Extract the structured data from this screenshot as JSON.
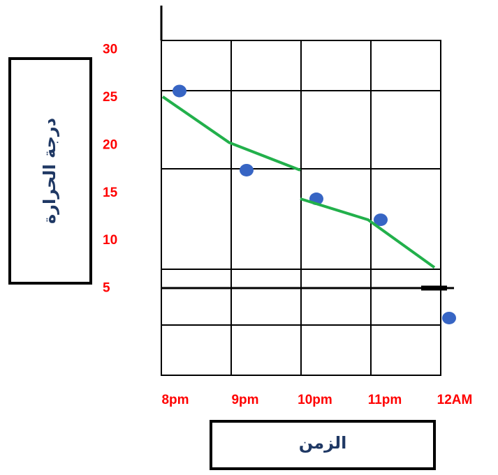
{
  "chart_data": {
    "type": "scatter",
    "y_label": "درجة الحرارة",
    "x_label": "الزمن",
    "xlim": [
      0,
      4
    ],
    "xticks": [
      {
        "value": 0,
        "label": "8pm"
      },
      {
        "value": 1,
        "label": "9pm"
      },
      {
        "value": 2,
        "label": "10pm"
      },
      {
        "value": 3,
        "label": "11pm"
      },
      {
        "value": 4,
        "label": "12AM"
      }
    ],
    "ylim": [
      -4.1,
      31
    ],
    "yticks": [
      5,
      10,
      15,
      20,
      25,
      30
    ],
    "grid": true,
    "series": [
      {
        "color": "#3765c4",
        "x": [
          0.26,
          1.22,
          2.22,
          3.14,
          4.12
        ],
        "values": [
          25.7,
          17.4,
          14.4,
          12.2,
          1.9
        ]
      },
      {
        "color": "#22b04b",
        "x": [
          0.02,
          0.97,
          1.99,
          null,
          1.99,
          2.96,
          3.91
        ],
        "values": [
          25.1,
          20.3,
          17.4,
          null,
          14.4,
          12.2,
          7.2
        ],
        "style": "line"
      }
    ]
  }
}
